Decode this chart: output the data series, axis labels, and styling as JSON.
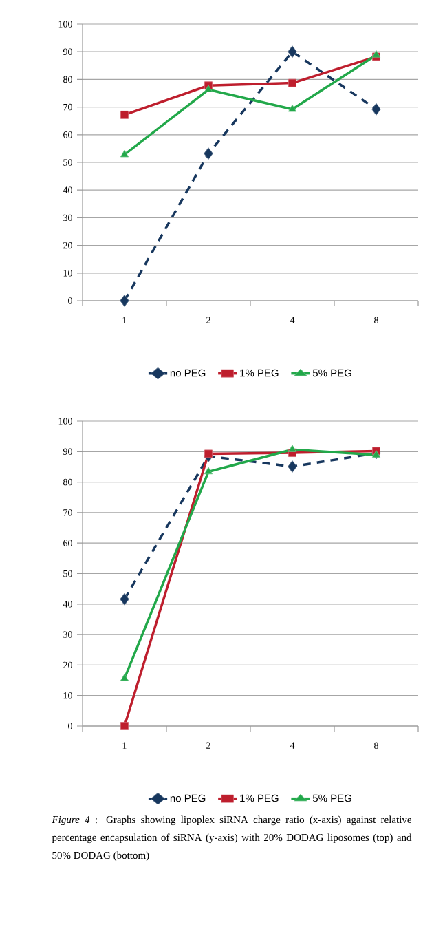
{
  "chart_data": [
    {
      "type": "line",
      "categories": [
        "1",
        "2",
        "4",
        "8"
      ],
      "ylim": [
        0,
        100
      ],
      "yticks": [
        0,
        10,
        20,
        30,
        40,
        50,
        60,
        70,
        80,
        90,
        100
      ],
      "grid": "y",
      "legend": "bottom",
      "series": [
        {
          "name": "no PEG",
          "color": "#17375e",
          "marker": "diamond",
          "line_style": "dashed",
          "values": [
            0,
            53.2,
            90,
            69.2
          ]
        },
        {
          "name": "1% PEG",
          "color": "#be1e2d",
          "marker": "square",
          "line_style": "solid",
          "values": [
            67.2,
            77.8,
            78.7,
            88.2
          ]
        },
        {
          "name": "5% PEG",
          "color": "#22a84a",
          "marker": "triangle",
          "line_style": "solid",
          "values": [
            52.8,
            76.3,
            69.2,
            88.8
          ]
        }
      ]
    },
    {
      "type": "line",
      "categories": [
        "1",
        "2",
        "4",
        "8"
      ],
      "ylim": [
        0,
        100
      ],
      "yticks": [
        0,
        10,
        20,
        30,
        40,
        50,
        60,
        70,
        80,
        90,
        100
      ],
      "grid": "y",
      "legend": "bottom",
      "series": [
        {
          "name": "no PEG",
          "color": "#17375e",
          "marker": "diamond",
          "line_style": "dashed",
          "values": [
            41.6,
            88.5,
            85.1,
            89.5
          ]
        },
        {
          "name": "1% PEG",
          "color": "#be1e2d",
          "marker": "square",
          "line_style": "solid",
          "values": [
            0,
            89.3,
            89.6,
            90.2
          ]
        },
        {
          "name": "5% PEG",
          "color": "#22a84a",
          "marker": "triangle",
          "line_style": "solid",
          "values": [
            15.6,
            83.4,
            90.7,
            88.9
          ]
        }
      ],
      "annotations": [
        "*Figure 4* : Graphs showing lipoplex siRNA charge ratio (x-axis) against relative percentage encapsulation of siRNA (y-axis) with 20% DODAG liposomes (top) and 50% DODAG (bottom)"
      ]
    }
  ]
}
